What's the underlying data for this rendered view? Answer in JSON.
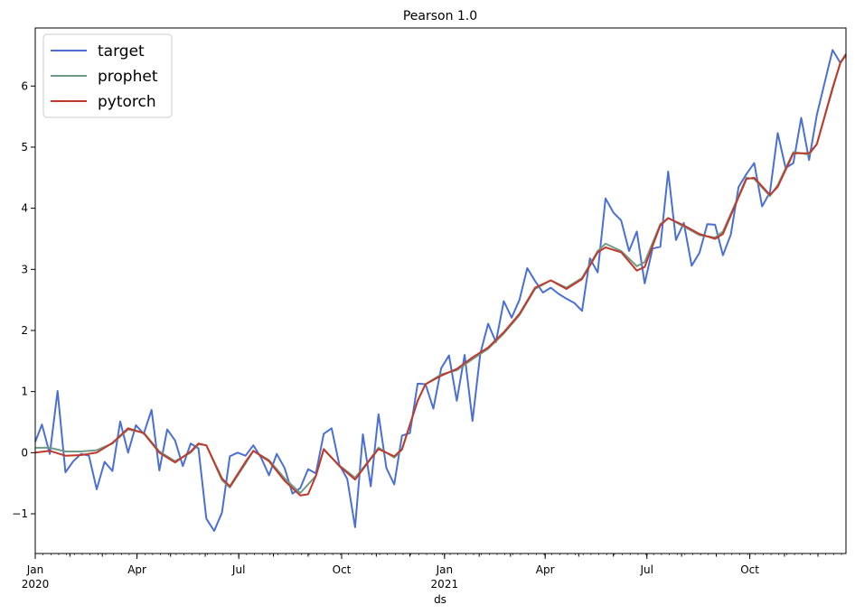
{
  "chart_data": {
    "type": "line",
    "title": "Pearson 1.0",
    "xlabel": "ds",
    "ylabel": "",
    "xlim": [
      "2020-01-01",
      "2021-12-26"
    ],
    "ylim": [
      -1.65,
      6.95
    ],
    "grid": false,
    "legend_position": "top-left",
    "x_ticks": [
      {
        "date": "2020-01-01",
        "label": "Jan",
        "sublabel": "2020"
      },
      {
        "date": "2020-04-01",
        "label": "Apr",
        "sublabel": ""
      },
      {
        "date": "2020-07-01",
        "label": "Jul",
        "sublabel": ""
      },
      {
        "date": "2020-10-01",
        "label": "Oct",
        "sublabel": ""
      },
      {
        "date": "2021-01-01",
        "label": "Jan",
        "sublabel": "2021"
      },
      {
        "date": "2021-04-01",
        "label": "Apr",
        "sublabel": ""
      },
      {
        "date": "2021-07-01",
        "label": "Jul",
        "sublabel": ""
      },
      {
        "date": "2021-10-01",
        "label": "Oct",
        "sublabel": ""
      }
    ],
    "y_ticks": [
      {
        "value": -1,
        "label": "−1"
      },
      {
        "value": 0,
        "label": "0"
      },
      {
        "value": 1,
        "label": "1"
      },
      {
        "value": 2,
        "label": "2"
      },
      {
        "value": 3,
        "label": "3"
      },
      {
        "value": 4,
        "label": "4"
      },
      {
        "value": 5,
        "label": "5"
      },
      {
        "value": 6,
        "label": "6"
      }
    ],
    "series": [
      {
        "name": "target",
        "color": "#4a6fd6",
        "points": [
          [
            "2020-01-01",
            0.18
          ],
          [
            "2020-01-07",
            0.46
          ],
          [
            "2020-01-14",
            -0.02
          ],
          [
            "2020-01-21",
            1.01
          ],
          [
            "2020-01-28",
            -0.32
          ],
          [
            "2020-02-04",
            -0.14
          ],
          [
            "2020-02-11",
            -0.02
          ],
          [
            "2020-02-18",
            -0.05
          ],
          [
            "2020-02-25",
            -0.6
          ],
          [
            "2020-03-03",
            -0.15
          ],
          [
            "2020-03-10",
            -0.3
          ],
          [
            "2020-03-17",
            0.51
          ],
          [
            "2020-03-24",
            0.0
          ],
          [
            "2020-03-31",
            0.45
          ],
          [
            "2020-04-07",
            0.31
          ],
          [
            "2020-04-14",
            0.7
          ],
          [
            "2020-04-21",
            -0.29
          ],
          [
            "2020-04-28",
            0.38
          ],
          [
            "2020-05-05",
            0.2
          ],
          [
            "2020-05-12",
            -0.22
          ],
          [
            "2020-05-19",
            0.15
          ],
          [
            "2020-05-26",
            0.07
          ],
          [
            "2020-06-02",
            -1.08
          ],
          [
            "2020-06-09",
            -1.28
          ],
          [
            "2020-06-16",
            -0.98
          ],
          [
            "2020-06-23",
            -0.06
          ],
          [
            "2020-06-30",
            0.0
          ],
          [
            "2020-07-07",
            -0.05
          ],
          [
            "2020-07-14",
            0.12
          ],
          [
            "2020-07-21",
            -0.08
          ],
          [
            "2020-07-28",
            -0.37
          ],
          [
            "2020-08-04",
            -0.02
          ],
          [
            "2020-08-11",
            -0.25
          ],
          [
            "2020-08-18",
            -0.67
          ],
          [
            "2020-08-25",
            -0.58
          ],
          [
            "2020-09-01",
            -0.27
          ],
          [
            "2020-09-08",
            -0.34
          ],
          [
            "2020-09-15",
            0.31
          ],
          [
            "2020-09-22",
            0.4
          ],
          [
            "2020-09-29",
            -0.2
          ],
          [
            "2020-10-06",
            -0.43
          ],
          [
            "2020-10-13",
            -1.22
          ],
          [
            "2020-10-20",
            0.3
          ],
          [
            "2020-10-27",
            -0.55
          ],
          [
            "2020-11-03",
            0.63
          ],
          [
            "2020-11-10",
            -0.25
          ],
          [
            "2020-11-17",
            -0.52
          ],
          [
            "2020-11-24",
            0.28
          ],
          [
            "2020-12-01",
            0.32
          ],
          [
            "2020-12-08",
            1.13
          ],
          [
            "2020-12-15",
            1.12
          ],
          [
            "2020-12-22",
            0.72
          ],
          [
            "2020-12-29",
            1.38
          ],
          [
            "2021-01-05",
            1.59
          ],
          [
            "2021-01-12",
            0.85
          ],
          [
            "2021-01-19",
            1.6
          ],
          [
            "2021-01-26",
            0.52
          ],
          [
            "2021-02-02",
            1.62
          ],
          [
            "2021-02-09",
            2.11
          ],
          [
            "2021-02-16",
            1.81
          ],
          [
            "2021-02-23",
            2.48
          ],
          [
            "2021-03-02",
            2.21
          ],
          [
            "2021-03-09",
            2.5
          ],
          [
            "2021-03-16",
            3.02
          ],
          [
            "2021-03-23",
            2.81
          ],
          [
            "2021-03-30",
            2.62
          ],
          [
            "2021-04-06",
            2.7
          ],
          [
            "2021-04-13",
            2.6
          ],
          [
            "2021-04-20",
            2.52
          ],
          [
            "2021-04-27",
            2.45
          ],
          [
            "2021-05-04",
            2.32
          ],
          [
            "2021-05-11",
            3.18
          ],
          [
            "2021-05-18",
            2.95
          ],
          [
            "2021-05-25",
            4.16
          ],
          [
            "2021-06-01",
            3.93
          ],
          [
            "2021-06-08",
            3.8
          ],
          [
            "2021-06-15",
            3.3
          ],
          [
            "2021-06-22",
            3.62
          ],
          [
            "2021-06-29",
            2.77
          ],
          [
            "2021-07-06",
            3.34
          ],
          [
            "2021-07-13",
            3.37
          ],
          [
            "2021-07-20",
            4.6
          ],
          [
            "2021-07-27",
            3.48
          ],
          [
            "2021-08-03",
            3.76
          ],
          [
            "2021-08-10",
            3.06
          ],
          [
            "2021-08-17",
            3.27
          ],
          [
            "2021-08-24",
            3.74
          ],
          [
            "2021-08-31",
            3.73
          ],
          [
            "2021-09-07",
            3.23
          ],
          [
            "2021-09-14",
            3.57
          ],
          [
            "2021-09-21",
            4.35
          ],
          [
            "2021-09-28",
            4.56
          ],
          [
            "2021-10-05",
            4.74
          ],
          [
            "2021-10-12",
            4.03
          ],
          [
            "2021-10-19",
            4.26
          ],
          [
            "2021-10-26",
            5.23
          ],
          [
            "2021-11-02",
            4.66
          ],
          [
            "2021-11-09",
            4.74
          ],
          [
            "2021-11-16",
            5.48
          ],
          [
            "2021-11-23",
            4.79
          ],
          [
            "2021-11-30",
            5.53
          ],
          [
            "2021-12-07",
            6.06
          ],
          [
            "2021-12-14",
            6.59
          ],
          [
            "2021-12-21",
            6.38
          ],
          [
            "2021-12-26",
            6.52
          ]
        ]
      },
      {
        "name": "prophet",
        "color": "#6f9a86",
        "points": [
          [
            "2020-01-01",
            0.08
          ],
          [
            "2020-01-14",
            0.08
          ],
          [
            "2020-01-28",
            0.02
          ],
          [
            "2020-02-11",
            0.02
          ],
          [
            "2020-02-25",
            0.04
          ],
          [
            "2020-03-10",
            0.15
          ],
          [
            "2020-03-24",
            0.38
          ],
          [
            "2020-04-07",
            0.33
          ],
          [
            "2020-04-21",
            0.02
          ],
          [
            "2020-05-05",
            -0.14
          ],
          [
            "2020-05-19",
            0.0
          ],
          [
            "2020-05-26",
            0.14
          ],
          [
            "2020-06-02",
            0.12
          ],
          [
            "2020-06-16",
            -0.45
          ],
          [
            "2020-06-23",
            -0.57
          ],
          [
            "2020-07-07",
            -0.18
          ],
          [
            "2020-07-14",
            0.03
          ],
          [
            "2020-07-28",
            -0.12
          ],
          [
            "2020-08-11",
            -0.42
          ],
          [
            "2020-08-25",
            -0.66
          ],
          [
            "2020-09-08",
            -0.38
          ],
          [
            "2020-09-15",
            0.05
          ],
          [
            "2020-09-29",
            -0.21
          ],
          [
            "2020-10-13",
            -0.41
          ],
          [
            "2020-10-27",
            -0.09
          ],
          [
            "2020-11-03",
            0.08
          ],
          [
            "2020-11-17",
            -0.08
          ],
          [
            "2020-11-24",
            0.05
          ],
          [
            "2020-12-08",
            0.85
          ],
          [
            "2020-12-15",
            1.12
          ],
          [
            "2020-12-29",
            1.28
          ],
          [
            "2021-01-12",
            1.35
          ],
          [
            "2021-01-26",
            1.53
          ],
          [
            "2021-02-09",
            1.7
          ],
          [
            "2021-02-23",
            1.95
          ],
          [
            "2021-03-09",
            2.25
          ],
          [
            "2021-03-23",
            2.68
          ],
          [
            "2021-04-06",
            2.82
          ],
          [
            "2021-04-20",
            2.7
          ],
          [
            "2021-05-04",
            2.86
          ],
          [
            "2021-05-18",
            3.3
          ],
          [
            "2021-05-25",
            3.42
          ],
          [
            "2021-06-08",
            3.3
          ],
          [
            "2021-06-22",
            3.05
          ],
          [
            "2021-06-29",
            3.12
          ],
          [
            "2021-07-13",
            3.74
          ],
          [
            "2021-07-20",
            3.84
          ],
          [
            "2021-08-03",
            3.7
          ],
          [
            "2021-08-17",
            3.56
          ],
          [
            "2021-08-31",
            3.52
          ],
          [
            "2021-09-07",
            3.62
          ],
          [
            "2021-09-21",
            4.2
          ],
          [
            "2021-09-28",
            4.5
          ],
          [
            "2021-10-05",
            4.48
          ],
          [
            "2021-10-19",
            4.2
          ],
          [
            "2021-10-26",
            4.38
          ],
          [
            "2021-11-09",
            4.92
          ],
          [
            "2021-11-23",
            4.88
          ],
          [
            "2021-11-30",
            5.05
          ],
          [
            "2021-12-14",
            5.95
          ],
          [
            "2021-12-21",
            6.38
          ],
          [
            "2021-12-26",
            6.5
          ]
        ]
      },
      {
        "name": "pytorch",
        "color": "#c0392b",
        "points": [
          [
            "2020-01-01",
            0.0
          ],
          [
            "2020-01-14",
            0.03
          ],
          [
            "2020-01-28",
            -0.05
          ],
          [
            "2020-02-11",
            -0.04
          ],
          [
            "2020-02-25",
            0.0
          ],
          [
            "2020-03-10",
            0.16
          ],
          [
            "2020-03-24",
            0.4
          ],
          [
            "2020-04-07",
            0.32
          ],
          [
            "2020-04-21",
            0.0
          ],
          [
            "2020-05-05",
            -0.16
          ],
          [
            "2020-05-19",
            0.02
          ],
          [
            "2020-05-26",
            0.15
          ],
          [
            "2020-06-02",
            0.12
          ],
          [
            "2020-06-16",
            -0.42
          ],
          [
            "2020-06-23",
            -0.55
          ],
          [
            "2020-07-07",
            -0.15
          ],
          [
            "2020-07-14",
            0.03
          ],
          [
            "2020-07-28",
            -0.14
          ],
          [
            "2020-08-11",
            -0.46
          ],
          [
            "2020-08-25",
            -0.7
          ],
          [
            "2020-09-01",
            -0.68
          ],
          [
            "2020-09-08",
            -0.38
          ],
          [
            "2020-09-15",
            0.06
          ],
          [
            "2020-09-29",
            -0.22
          ],
          [
            "2020-10-13",
            -0.44
          ],
          [
            "2020-10-27",
            -0.1
          ],
          [
            "2020-11-03",
            0.06
          ],
          [
            "2020-11-17",
            -0.06
          ],
          [
            "2020-11-24",
            0.06
          ],
          [
            "2020-12-08",
            0.85
          ],
          [
            "2020-12-15",
            1.12
          ],
          [
            "2020-12-29",
            1.26
          ],
          [
            "2021-01-12",
            1.37
          ],
          [
            "2021-01-26",
            1.56
          ],
          [
            "2021-02-09",
            1.72
          ],
          [
            "2021-02-23",
            1.97
          ],
          [
            "2021-03-09",
            2.27
          ],
          [
            "2021-03-23",
            2.7
          ],
          [
            "2021-04-06",
            2.82
          ],
          [
            "2021-04-20",
            2.68
          ],
          [
            "2021-05-04",
            2.84
          ],
          [
            "2021-05-18",
            3.28
          ],
          [
            "2021-05-25",
            3.36
          ],
          [
            "2021-06-08",
            3.28
          ],
          [
            "2021-06-22",
            2.98
          ],
          [
            "2021-06-29",
            3.04
          ],
          [
            "2021-07-13",
            3.72
          ],
          [
            "2021-07-20",
            3.84
          ],
          [
            "2021-08-03",
            3.72
          ],
          [
            "2021-08-17",
            3.58
          ],
          [
            "2021-08-31",
            3.5
          ],
          [
            "2021-09-07",
            3.58
          ],
          [
            "2021-09-21",
            4.18
          ],
          [
            "2021-09-28",
            4.48
          ],
          [
            "2021-10-05",
            4.5
          ],
          [
            "2021-10-19",
            4.22
          ],
          [
            "2021-10-26",
            4.35
          ],
          [
            "2021-11-09",
            4.9
          ],
          [
            "2021-11-23",
            4.9
          ],
          [
            "2021-11-30",
            5.05
          ],
          [
            "2021-12-14",
            5.97
          ],
          [
            "2021-12-21",
            6.38
          ],
          [
            "2021-12-26",
            6.52
          ]
        ]
      }
    ]
  }
}
